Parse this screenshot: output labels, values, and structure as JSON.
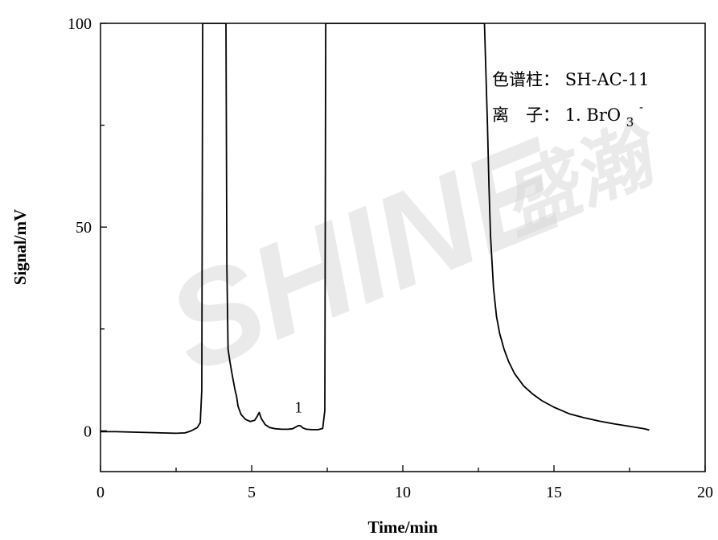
{
  "chart_data": {
    "type": "line",
    "xlabel": "Time/min",
    "ylabel": "Signal/mV",
    "xlim": [
      0,
      20
    ],
    "ylim": [
      -10,
      100
    ],
    "x_ticks": [
      0,
      5,
      10,
      15,
      20
    ],
    "y_ticks": [
      0,
      50,
      100
    ],
    "grid": false,
    "series": [
      {
        "color": "#000000",
        "x": [
          0,
          0.5,
          1.0,
          1.5,
          2.0,
          2.5,
          2.8,
          3.0,
          3.2,
          3.3,
          3.35,
          3.38,
          3.45,
          3.7,
          4.0,
          4.15,
          4.18,
          4.22,
          4.28,
          4.35,
          4.45,
          4.5,
          4.55,
          4.65,
          4.8,
          4.95,
          5.1,
          5.18,
          5.25,
          5.32,
          5.45,
          5.6,
          5.8,
          6.0,
          6.2,
          6.35,
          6.45,
          6.55,
          6.62,
          6.7,
          6.8,
          7.0,
          7.2,
          7.35,
          7.42,
          7.45,
          7.5,
          7.55,
          7.6,
          10.0,
          12.7,
          12.8,
          12.85,
          12.9,
          13.0,
          13.1,
          13.2,
          13.35,
          13.5,
          13.7,
          14.0,
          14.3,
          14.6,
          15.0,
          15.5,
          16.0,
          16.5,
          17.0,
          17.5,
          18.0,
          18.15
        ],
        "y": [
          -0.2,
          -0.2,
          -0.3,
          -0.4,
          -0.5,
          -0.6,
          -0.5,
          0.0,
          0.8,
          2.0,
          10.0,
          100,
          100,
          100,
          100,
          100,
          40.0,
          20.0,
          17.0,
          14.0,
          10.0,
          8.5,
          6.0,
          4.0,
          2.8,
          2.3,
          2.6,
          3.5,
          4.5,
          3.0,
          1.5,
          0.8,
          0.5,
          0.4,
          0.4,
          0.5,
          0.9,
          1.3,
          1.2,
          0.7,
          0.4,
          0.3,
          0.3,
          0.6,
          5.0,
          100,
          100,
          100,
          100,
          100,
          100,
          75.0,
          60.0,
          48.0,
          35.0,
          28.0,
          24.0,
          20.0,
          17.0,
          14.0,
          11.0,
          9.0,
          7.4,
          5.8,
          4.2,
          3.2,
          2.4,
          1.7,
          1.1,
          0.5,
          0.2
        ]
      }
    ],
    "annotations": [
      {
        "text": "1",
        "x": 6.55,
        "y": 4.5
      }
    ],
    "legend": {
      "position": "top-right",
      "column_label": "色谱柱：",
      "column_value": "SH-AC-11",
      "ion_label": "离　子：",
      "ion_value_prefix": "1. BrO",
      "ion_subscript": "3",
      "ion_superscript": "-"
    },
    "watermark": {
      "latin": "SHINE",
      "cjk": "盛瀚"
    }
  }
}
